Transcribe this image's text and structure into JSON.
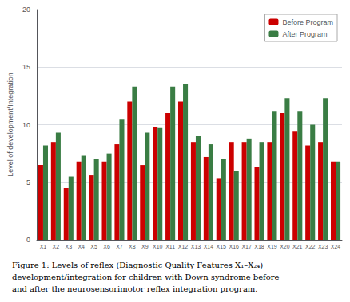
{
  "chart_data": {
    "type": "bar",
    "categories": [
      "X1",
      "X2",
      "X3",
      "X4",
      "X5",
      "X6",
      "X7",
      "X8",
      "X9",
      "X10",
      "X11",
      "X12",
      "X13",
      "X14",
      "X15",
      "X16",
      "X17",
      "X18",
      "X19",
      "X20",
      "X21",
      "X22",
      "X23",
      "X24"
    ],
    "series": [
      {
        "name": "Before Program",
        "color": "#cc0000",
        "values": [
          6.5,
          8.5,
          4.5,
          6.8,
          5.6,
          6.8,
          8.3,
          12.0,
          6.5,
          9.8,
          11.0,
          12.0,
          8.5,
          7.2,
          5.3,
          8.5,
          8.5,
          6.3,
          8.5,
          11.0,
          9.4,
          8.2,
          8.5,
          6.8
        ]
      },
      {
        "name": "After Program",
        "color": "#3a7d44",
        "values": [
          8.2,
          9.3,
          5.5,
          7.3,
          7.0,
          7.5,
          10.5,
          13.3,
          9.3,
          9.7,
          13.3,
          13.5,
          9.0,
          8.3,
          7.0,
          6.0,
          8.8,
          8.5,
          11.2,
          12.3,
          11.2,
          10.0,
          12.3,
          6.8
        ]
      }
    ],
    "ylabel": "Level of development/Integration",
    "ylim": [
      0,
      20
    ],
    "yticks": [
      0,
      5,
      10,
      15,
      20
    ],
    "grid": true,
    "legend": "upper right",
    "caption": [
      "Figure 1: Levels of reflex (Diagnostic Quality Features X₁–X₂₄)",
      "development/integration for children with Down syndrome before",
      "and after the neurosensorimotor reflex integration program."
    ]
  }
}
